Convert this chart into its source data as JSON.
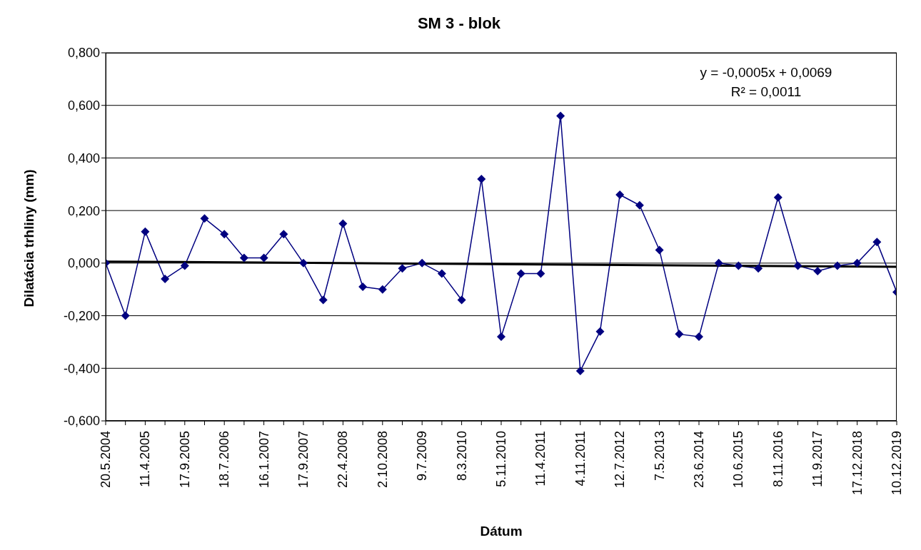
{
  "chart_data": {
    "type": "line",
    "title": "SM 3 - blok",
    "xlabel": "Dátum",
    "ylabel": "Dilatácia trhliny (mm)",
    "categories": [
      "20.5.2004",
      null,
      "11.4.2005",
      null,
      "17.9.2005",
      null,
      "18.7.2006",
      null,
      "16.1.2007",
      null,
      "17.9.2007",
      null,
      "22.4.2008",
      null,
      "2.10.2008",
      null,
      "9.7.2009",
      null,
      "8.3.2010",
      null,
      "5.11.2010",
      null,
      "11.4.2011",
      null,
      "4.11.2011",
      null,
      "12.7.2012",
      null,
      "7.5.2013",
      null,
      "23.6.2014",
      null,
      "10.6.2015",
      null,
      "8.11.2016",
      null,
      "11.9.2017",
      null,
      "17.12.2018",
      null,
      "10.12.2019"
    ],
    "series": [
      {
        "color": "#000080",
        "marker": "diamond",
        "values": [
          0.0,
          -0.2,
          0.12,
          -0.06,
          -0.01,
          0.17,
          0.11,
          0.02,
          0.02,
          0.11,
          0.0,
          -0.14,
          0.15,
          -0.09,
          -0.1,
          -0.02,
          0.0,
          -0.04,
          -0.14,
          0.32,
          -0.28,
          -0.04,
          -0.04,
          0.56,
          -0.41,
          -0.26,
          0.26,
          0.22,
          0.05,
          -0.27,
          -0.28,
          0.0,
          -0.01,
          -0.02,
          0.25,
          -0.01,
          -0.03,
          -0.01,
          0.0,
          0.08,
          -0.11
        ]
      },
      {
        "type": "line",
        "color": "#000000",
        "marker": "none",
        "x": [
          "20.5.2004",
          "10.12.2019"
        ],
        "values": [
          0.006,
          -0.014
        ]
      }
    ],
    "ylim": [
      -0.6,
      0.8
    ],
    "yticks": [
      {
        "value": -0.6,
        "label": "-0,600"
      },
      {
        "value": -0.4,
        "label": "-0,400"
      },
      {
        "value": -0.2,
        "label": "-0,200"
      },
      {
        "value": 0,
        "label": "0,000"
      },
      {
        "value": 0.2,
        "label": "0,200"
      },
      {
        "value": 0.4,
        "label": "0,400"
      },
      {
        "value": 0.6,
        "label": "0,600"
      },
      {
        "value": 0.8,
        "label": "0,800"
      }
    ],
    "grid": "y",
    "annotations": [
      "y = -0,0005x + 0,0069",
      "R² = 0,0011"
    ]
  }
}
